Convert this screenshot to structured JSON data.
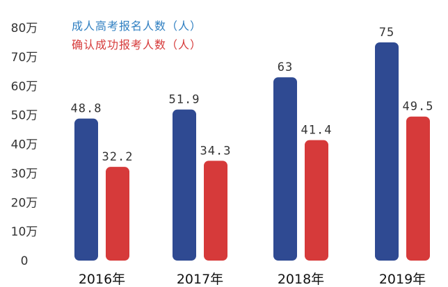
{
  "chart_data": {
    "type": "bar",
    "categories": [
      "2016年",
      "2017年",
      "2018年",
      "2019年"
    ],
    "series": [
      {
        "name": "成人高考报名人数（人）",
        "values": [
          48.8,
          51.9,
          63,
          75
        ],
        "color": "#2f4a92",
        "value_labels": [
          "48.8",
          "51.9",
          "63",
          "75"
        ]
      },
      {
        "name": "确认成功报考人数（人）",
        "values": [
          32.2,
          34.3,
          41.4,
          49.5
        ],
        "color": "#d63a3a",
        "value_labels": [
          "32.2",
          "34.3",
          "41.4",
          "49.5"
        ]
      }
    ],
    "y_ticks": [
      0,
      10,
      20,
      30,
      40,
      50,
      60,
      70,
      80
    ],
    "y_tick_labels": [
      "0",
      "10万",
      "20万",
      "30万",
      "40万",
      "50万",
      "60万",
      "70万",
      "80万"
    ],
    "ylim": [
      0,
      80
    ],
    "grid": false,
    "legend_position": "top-left"
  }
}
